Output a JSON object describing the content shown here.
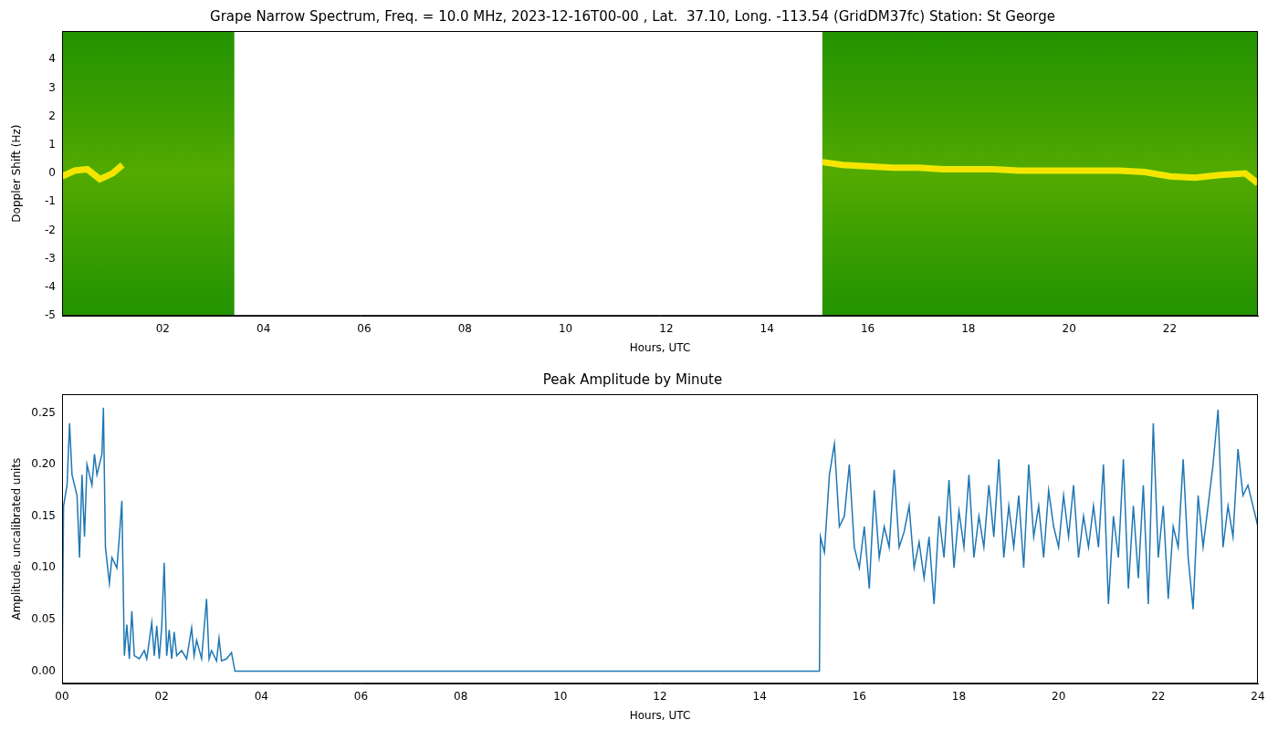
{
  "chart_data": [
    {
      "type": "line",
      "title": "Grape Narrow Spectrum, Freq. = 10.0 MHz, 2023-12-16T00-00 , Lat.  37.10, Long. -113.54 (GridDM37fc) Station: St George",
      "x_label": "Hours, UTC",
      "y_label": "Doppler Shift (Hz)",
      "xlim": [
        0,
        23.75
      ],
      "xticks": [
        {
          "value": 2,
          "label": "02"
        },
        {
          "value": 4,
          "label": "04"
        },
        {
          "value": 6,
          "label": "06"
        },
        {
          "value": 8,
          "label": "08"
        },
        {
          "value": 10,
          "label": "10"
        },
        {
          "value": 12,
          "label": "12"
        },
        {
          "value": 14,
          "label": "14"
        },
        {
          "value": 16,
          "label": "16"
        },
        {
          "value": 18,
          "label": "18"
        },
        {
          "value": 20,
          "label": "20"
        },
        {
          "value": 22,
          "label": "22"
        }
      ],
      "ylim": [
        -5,
        5
      ],
      "yticks": [
        -5,
        -4,
        -3,
        -2,
        -1,
        0,
        1,
        2,
        3,
        4
      ],
      "grid": false,
      "data_intervals": [
        [
          0,
          3.42
        ],
        [
          15.1,
          23.75
        ]
      ],
      "color": "#ff4000",
      "x": [
        0,
        0.25,
        0.5,
        0.75,
        1.0,
        1.2,
        1.25,
        15.1,
        15.5,
        16,
        16.5,
        17,
        17.5,
        18,
        18.5,
        19,
        19.5,
        20,
        20.5,
        21,
        21.5,
        22,
        22.5,
        23,
        23.5,
        23.75
      ],
      "values": [
        -0.1,
        0.1,
        0.15,
        -0.2,
        0.0,
        0.3,
        null,
        0.4,
        0.3,
        0.25,
        0.2,
        0.2,
        0.15,
        0.15,
        0.15,
        0.1,
        0.1,
        0.1,
        0.1,
        0.1,
        0.05,
        -0.1,
        -0.15,
        -0.05,
        0.0,
        -0.35
      ]
    },
    {
      "type": "line",
      "title": "Peak Amplitude by Minute",
      "x_label": "Hours, UTC",
      "y_label": "Amplitude, uncalibrated units",
      "xlim": [
        0,
        24
      ],
      "xticks": [
        {
          "value": 0,
          "label": "00"
        },
        {
          "value": 2,
          "label": "02"
        },
        {
          "value": 4,
          "label": "04"
        },
        {
          "value": 6,
          "label": "06"
        },
        {
          "value": 8,
          "label": "08"
        },
        {
          "value": 10,
          "label": "10"
        },
        {
          "value": 12,
          "label": "12"
        },
        {
          "value": 14,
          "label": "14"
        },
        {
          "value": 16,
          "label": "16"
        },
        {
          "value": 18,
          "label": "18"
        },
        {
          "value": 20,
          "label": "20"
        },
        {
          "value": 22,
          "label": "22"
        },
        {
          "value": 24,
          "label": "24"
        }
      ],
      "ylim": [
        -0.012,
        0.268
      ],
      "yticks": [
        {
          "value": 0,
          "label": "0.00"
        },
        0.05,
        {
          "value": 0.1,
          "label": "0.10"
        },
        0.15,
        {
          "value": 0.2,
          "label": "0.20"
        },
        0.25
      ],
      "grid": false,
      "color": "#1f77b4",
      "x": [
        0,
        0.03,
        0.1,
        0.15,
        0.2,
        0.3,
        0.35,
        0.4,
        0.45,
        0.5,
        0.6,
        0.65,
        0.7,
        0.8,
        0.83,
        0.87,
        0.95,
        1.0,
        1.1,
        1.15,
        1.2,
        1.25,
        1.3,
        1.35,
        1.4,
        1.45,
        1.55,
        1.65,
        1.7,
        1.8,
        1.85,
        1.9,
        1.95,
        2.0,
        2.05,
        2.1,
        2.15,
        2.2,
        2.25,
        2.3,
        2.4,
        2.5,
        2.6,
        2.65,
        2.7,
        2.8,
        2.9,
        2.95,
        3.0,
        3.1,
        3.15,
        3.2,
        3.3,
        3.4,
        3.47,
        15.2,
        15.22,
        15.3,
        15.4,
        15.5,
        15.6,
        15.7,
        15.8,
        15.9,
        16.0,
        16.1,
        16.2,
        16.3,
        16.4,
        16.5,
        16.6,
        16.7,
        16.8,
        16.9,
        17.0,
        17.1,
        17.2,
        17.3,
        17.4,
        17.5,
        17.6,
        17.7,
        17.8,
        17.9,
        18.0,
        18.1,
        18.2,
        18.3,
        18.4,
        18.5,
        18.6,
        18.7,
        18.8,
        18.9,
        19.0,
        19.1,
        19.2,
        19.3,
        19.4,
        19.5,
        19.6,
        19.7,
        19.8,
        19.9,
        20.0,
        20.1,
        20.2,
        20.3,
        20.4,
        20.5,
        20.6,
        20.7,
        20.8,
        20.9,
        21.0,
        21.1,
        21.2,
        21.3,
        21.4,
        21.5,
        21.6,
        21.7,
        21.8,
        21.9,
        22.0,
        22.1,
        22.2,
        22.3,
        22.4,
        22.5,
        22.6,
        22.7,
        22.8,
        22.9,
        23.0,
        23.1,
        23.2,
        23.3,
        23.4,
        23.5,
        23.6,
        23.7,
        23.8,
        23.9,
        24.0
      ],
      "values": [
        0,
        0.16,
        0.18,
        0.24,
        0.19,
        0.17,
        0.11,
        0.19,
        0.13,
        0.2,
        0.18,
        0.21,
        0.19,
        0.21,
        0.255,
        0.12,
        0.085,
        0.11,
        0.1,
        0.13,
        0.165,
        0.015,
        0.045,
        0.012,
        0.058,
        0.015,
        0.012,
        0.02,
        0.012,
        0.047,
        0.015,
        0.044,
        0.012,
        0.043,
        0.105,
        0.015,
        0.04,
        0.012,
        0.038,
        0.015,
        0.02,
        0.012,
        0.042,
        0.015,
        0.03,
        0.012,
        0.07,
        0.012,
        0.02,
        0.01,
        0.032,
        0.01,
        0.012,
        0.018,
        0,
        0,
        0.13,
        0.115,
        0.19,
        0.22,
        0.14,
        0.15,
        0.2,
        0.12,
        0.1,
        0.14,
        0.08,
        0.175,
        0.11,
        0.14,
        0.12,
        0.195,
        0.12,
        0.135,
        0.16,
        0.1,
        0.125,
        0.09,
        0.13,
        0.065,
        0.15,
        0.11,
        0.185,
        0.1,
        0.155,
        0.12,
        0.19,
        0.11,
        0.15,
        0.12,
        0.18,
        0.13,
        0.205,
        0.11,
        0.16,
        0.12,
        0.17,
        0.1,
        0.2,
        0.13,
        0.16,
        0.11,
        0.175,
        0.14,
        0.12,
        0.17,
        0.13,
        0.18,
        0.11,
        0.15,
        0.12,
        0.16,
        0.12,
        0.2,
        0.065,
        0.15,
        0.11,
        0.205,
        0.08,
        0.16,
        0.09,
        0.18,
        0.065,
        0.24,
        0.11,
        0.16,
        0.07,
        0.14,
        0.12,
        0.205,
        0.11,
        0.06,
        0.17,
        0.12,
        0.16,
        0.2,
        0.253,
        0.12,
        0.16,
        0.13,
        0.215,
        0.17,
        0.18,
        0.16,
        0.14
      ]
    }
  ]
}
